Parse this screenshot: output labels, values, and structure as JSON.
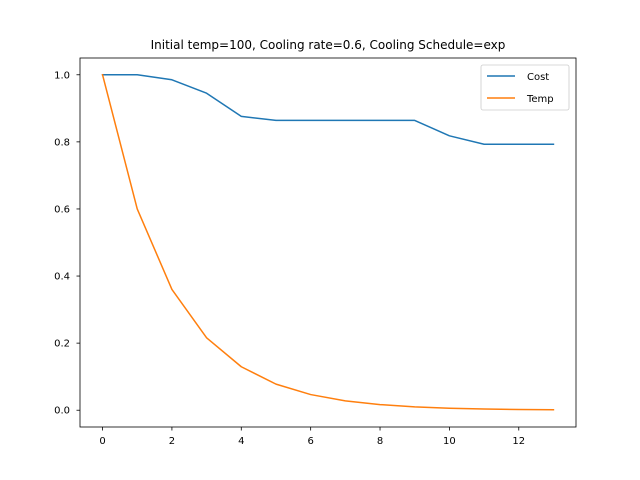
{
  "chart_data": {
    "type": "line",
    "title": "Initial temp=100, Cooling rate=0.6, Cooling Schedule=exp",
    "xlabel": "",
    "ylabel": "",
    "x": [
      0,
      1,
      2,
      3,
      4,
      5,
      6,
      7,
      8,
      9,
      10,
      11,
      12,
      13
    ],
    "xlim": [
      -0.65,
      13.65
    ],
    "ylim": [
      -0.05,
      1.05
    ],
    "xticks": [
      0,
      2,
      4,
      6,
      8,
      10,
      12
    ],
    "yticks": [
      0.0,
      0.2,
      0.4,
      0.6,
      0.8,
      1.0
    ],
    "xtick_labels": [
      "0",
      "2",
      "4",
      "6",
      "8",
      "10",
      "12"
    ],
    "ytick_labels": [
      "0.0",
      "0.2",
      "0.4",
      "0.6",
      "0.8",
      "1.0"
    ],
    "grid": false,
    "legend_position": "top-right",
    "series": [
      {
        "name": "Cost",
        "color": "#1f77b4",
        "values": [
          1.0,
          1.0,
          0.985,
          0.945,
          0.876,
          0.864,
          0.864,
          0.864,
          0.864,
          0.864,
          0.818,
          0.793,
          0.793,
          0.793
        ]
      },
      {
        "name": "Temp",
        "color": "#ff7f0e",
        "values": [
          1.0,
          0.6,
          0.36,
          0.216,
          0.1296,
          0.0778,
          0.0467,
          0.028,
          0.0168,
          0.0101,
          0.006,
          0.0036,
          0.0022,
          0.0013
        ]
      }
    ]
  }
}
